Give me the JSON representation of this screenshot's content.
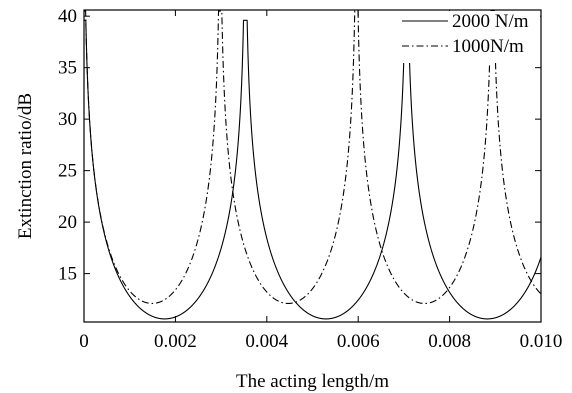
{
  "chart_data": {
    "type": "line",
    "title": "",
    "xlabel": "The acting length/m",
    "ylabel": "Extinction ratio/dB",
    "xlim": [
      0,
      0.01
    ],
    "ylim": [
      10.3,
      40.6
    ],
    "xticks": [
      "0",
      "0.002",
      "0.004",
      "0.006",
      "0.008",
      "0.010"
    ],
    "xtick_values": [
      0,
      0.002,
      0.004,
      0.006,
      0.008,
      0.01
    ],
    "yticks": [
      "15",
      "20",
      "25",
      "30",
      "35",
      "40"
    ],
    "ytick_values": [
      15,
      20,
      25,
      30,
      35,
      40
    ],
    "grid": false,
    "legend_position": "top-right",
    "series": [
      {
        "name": "2000 N/m",
        "style": "solid",
        "color": "#000000",
        "period": 0.00353,
        "first_peak": 0.0,
        "minimum_db": 10.6,
        "peak_db": 39.6,
        "x": [
          0,
          0.0002,
          0.0005,
          0.001,
          0.0015,
          0.00177,
          0.002,
          0.0025,
          0.003,
          0.0033,
          0.0035,
          0.0037,
          0.004,
          0.0045,
          0.005,
          0.0053,
          0.0056,
          0.006,
          0.0065,
          0.0068,
          0.00706,
          0.0073,
          0.0076,
          0.008,
          0.0085,
          0.0088,
          0.0092,
          0.0095,
          0.0098,
          0.01
        ],
        "y": [
          39.6,
          22.5,
          16.0,
          12.0,
          10.8,
          10.6,
          10.8,
          12.8,
          18.0,
          25.5,
          39.6,
          23.0,
          15.8,
          11.6,
          10.7,
          10.6,
          10.7,
          12.5,
          17.5,
          25.0,
          39.6,
          23.0,
          15.2,
          11.6,
          10.7,
          10.6,
          10.9,
          12.0,
          13.8,
          16.0
        ]
      },
      {
        "name": "1000N/m",
        "style": "dash-dot",
        "color": "#000000",
        "period": 0.00298,
        "first_peak": 0.00298,
        "minimum_db": 12.1,
        "peak_db": 40.5,
        "x": [
          0,
          0.0003,
          0.0007,
          0.001,
          0.0015,
          0.00149,
          0.002,
          0.0025,
          0.0028,
          0.00298,
          0.0032,
          0.0035,
          0.004,
          0.00447,
          0.005,
          0.0055,
          0.0058,
          0.00596,
          0.0062,
          0.0065,
          0.007,
          0.00745,
          0.008,
          0.0085,
          0.0088,
          0.00894,
          0.0092,
          0.0096,
          0.01
        ],
        "y": [
          40.5,
          22.0,
          15.0,
          13.4,
          12.1,
          12.1,
          12.9,
          16.3,
          22.0,
          40.5,
          23.0,
          16.2,
          12.9,
          12.1,
          12.9,
          16.0,
          21.0,
          40.5,
          24.0,
          17.0,
          13.0,
          12.1,
          12.8,
          15.5,
          20.0,
          40.5,
          22.0,
          16.0,
          13.4
        ]
      }
    ]
  }
}
